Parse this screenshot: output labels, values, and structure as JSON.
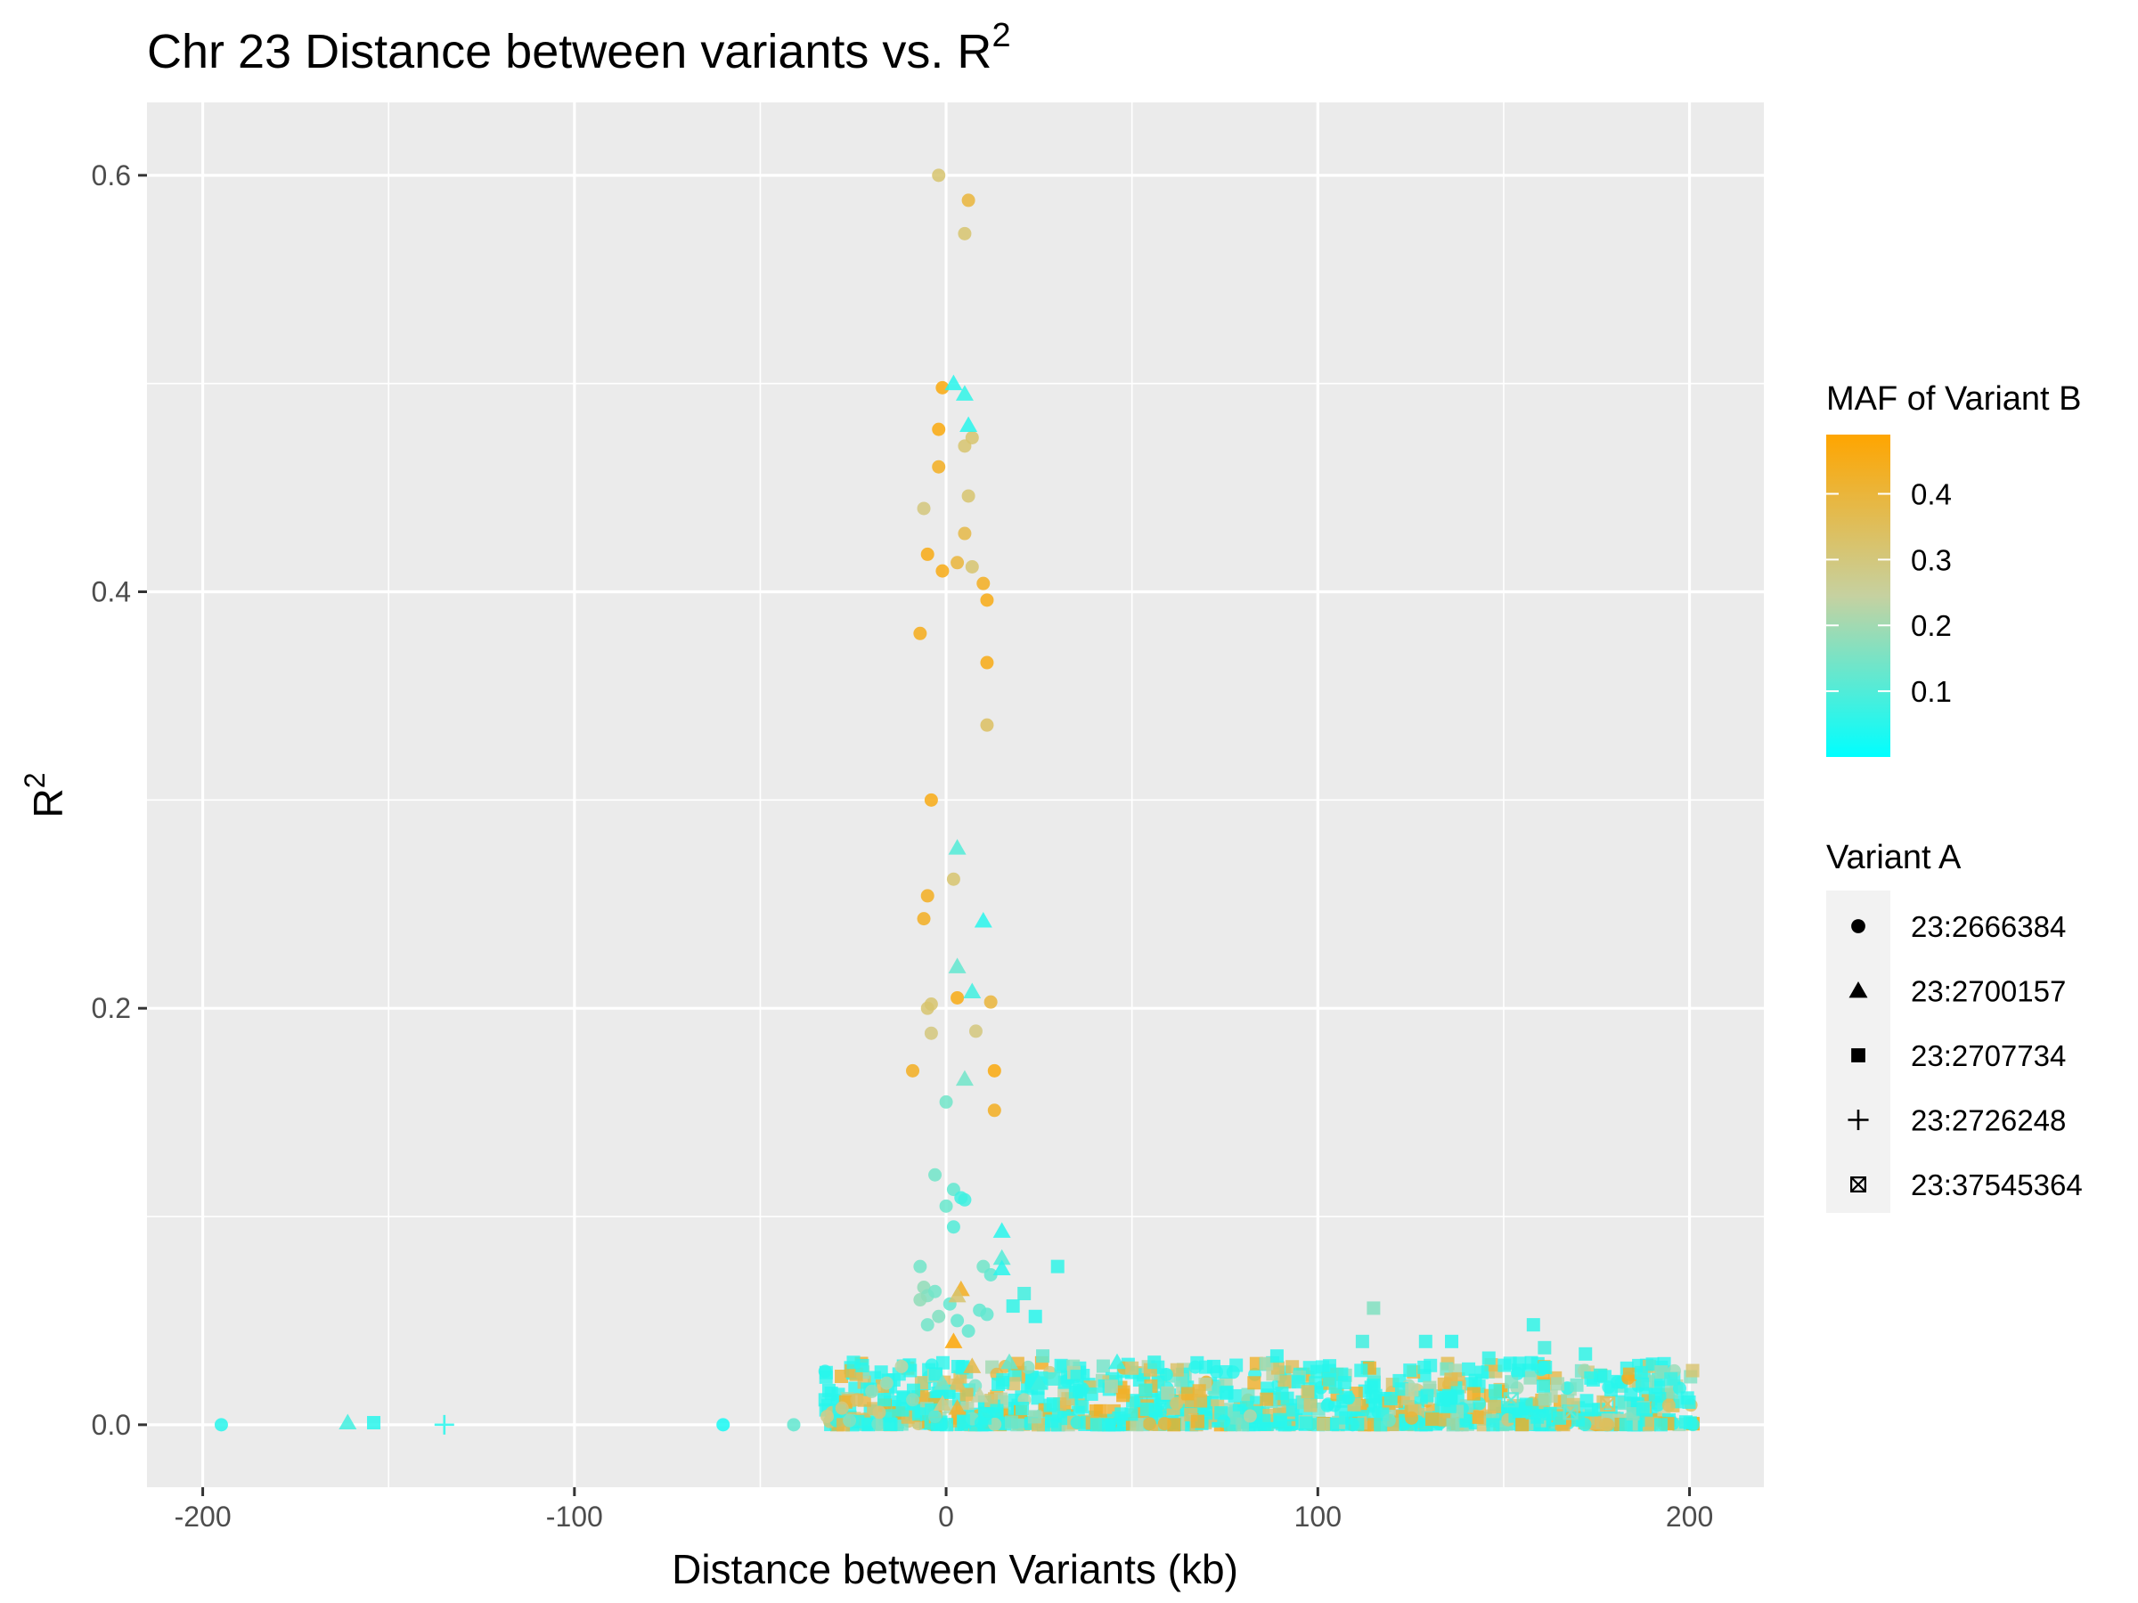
{
  "chart_data": {
    "type": "scatter",
    "title": "Chr 23 Distance between variants vs.  R",
    "title_sup": "2",
    "xlabel": "Distance between Variants (kb)",
    "ylabel": "R",
    "ylabel_sup": "2",
    "xlim": [
      -215,
      220
    ],
    "ylim": [
      -0.03,
      0.635
    ],
    "x_ticks": [
      -200,
      -100,
      0,
      100,
      200
    ],
    "x_tick_labels": [
      "-200",
      "-100",
      "0",
      "100",
      "200"
    ],
    "y_ticks": [
      0.0,
      0.2,
      0.4,
      0.6
    ],
    "y_tick_labels": [
      "0.0",
      "0.2",
      "0.4",
      "0.6"
    ],
    "grid": true,
    "legend_position": "right",
    "color_legend": {
      "title": "MAF of Variant B",
      "range": [
        0.0,
        0.49
      ],
      "ticks": [
        0.1,
        0.2,
        0.3,
        0.4
      ],
      "tick_labels": [
        "0.1",
        "0.2",
        "0.3",
        "0.4"
      ],
      "low_color": "#00ffff",
      "high_color": "#ffa500"
    },
    "shape_legend": {
      "title": "Variant A",
      "entries": [
        {
          "label": "23:2666384",
          "shape": "circle"
        },
        {
          "label": "23:2700157",
          "shape": "triangle"
        },
        {
          "label": "23:2707734",
          "shape": "square"
        },
        {
          "label": "23:2726248",
          "shape": "plus"
        },
        {
          "label": "23:37545364",
          "shape": "boxx"
        }
      ]
    },
    "series": [
      {
        "name": "23:2666384",
        "shape": "circle",
        "points": [
          [
            -195,
            0.0,
            0.05
          ],
          [
            -60,
            0.0,
            0.03
          ],
          [
            -41,
            0.0,
            0.12
          ],
          [
            -2,
            0.6,
            0.32
          ],
          [
            6,
            0.588,
            0.4
          ],
          [
            5,
            0.572,
            0.32
          ],
          [
            -1,
            0.498,
            0.47
          ],
          [
            -2,
            0.478,
            0.47
          ],
          [
            -2,
            0.46,
            0.44
          ],
          [
            7,
            0.474,
            0.32
          ],
          [
            5,
            0.47,
            0.32
          ],
          [
            6,
            0.446,
            0.32
          ],
          [
            -6,
            0.44,
            0.3
          ],
          [
            5,
            0.428,
            0.38
          ],
          [
            -5,
            0.418,
            0.46
          ],
          [
            3,
            0.414,
            0.4
          ],
          [
            -1,
            0.41,
            0.46
          ],
          [
            7,
            0.412,
            0.32
          ],
          [
            10,
            0.404,
            0.44
          ],
          [
            11,
            0.396,
            0.46
          ],
          [
            -7,
            0.38,
            0.45
          ],
          [
            11,
            0.366,
            0.46
          ],
          [
            11,
            0.336,
            0.34
          ],
          [
            -4,
            0.3,
            0.46
          ],
          [
            2,
            0.262,
            0.32
          ],
          [
            -5,
            0.254,
            0.44
          ],
          [
            -6,
            0.243,
            0.44
          ],
          [
            -5,
            0.2,
            0.32
          ],
          [
            -4,
            0.202,
            0.32
          ],
          [
            3,
            0.205,
            0.46
          ],
          [
            12,
            0.203,
            0.4
          ],
          [
            -4,
            0.188,
            0.3
          ],
          [
            8,
            0.189,
            0.3
          ],
          [
            -9,
            0.17,
            0.44
          ],
          [
            13,
            0.17,
            0.47
          ],
          [
            13,
            0.151,
            0.44
          ],
          [
            0,
            0.155,
            0.14
          ],
          [
            -3,
            0.12,
            0.14
          ],
          [
            2,
            0.113,
            0.12
          ],
          [
            4,
            0.109,
            0.08
          ],
          [
            5,
            0.108,
            0.08
          ],
          [
            0,
            0.105,
            0.13
          ],
          [
            2,
            0.095,
            0.1
          ],
          [
            -7,
            0.076,
            0.14
          ],
          [
            -6,
            0.066,
            0.18
          ],
          [
            -5,
            0.062,
            0.16
          ],
          [
            -3,
            0.064,
            0.14
          ],
          [
            -7,
            0.06,
            0.18
          ],
          [
            1,
            0.058,
            0.12
          ],
          [
            10,
            0.076,
            0.14
          ],
          [
            12,
            0.072,
            0.12
          ],
          [
            -2,
            0.052,
            0.16
          ],
          [
            -5,
            0.048,
            0.14
          ],
          [
            3,
            0.05,
            0.12
          ],
          [
            6,
            0.045,
            0.12
          ],
          [
            9,
            0.055,
            0.12
          ],
          [
            11,
            0.053,
            0.12
          ],
          [
            -12,
            0.028,
            0.24
          ],
          [
            -16,
            0.02,
            0.2
          ],
          [
            -20,
            0.016,
            0.18
          ],
          [
            -24,
            0.012,
            0.34
          ],
          [
            -28,
            0.008,
            0.3
          ],
          [
            -32,
            0.004,
            0.28
          ],
          [
            -26,
            0.002,
            0.16
          ],
          [
            -18,
            0.006,
            0.3
          ],
          [
            -9,
            0.012,
            0.16
          ],
          [
            -3,
            0.004,
            0.12
          ]
        ]
      },
      {
        "name": "23:2700157",
        "shape": "triangle",
        "points": [
          [
            -161,
            0.001,
            0.08
          ],
          [
            2,
            0.5,
            0.05
          ],
          [
            5,
            0.495,
            0.06
          ],
          [
            6,
            0.48,
            0.05
          ],
          [
            3,
            0.277,
            0.1
          ],
          [
            10,
            0.242,
            0.05
          ],
          [
            3,
            0.22,
            0.12
          ],
          [
            7,
            0.208,
            0.08
          ],
          [
            5,
            0.166,
            0.14
          ],
          [
            15,
            0.093,
            0.05
          ],
          [
            15,
            0.08,
            0.1
          ],
          [
            4,
            0.065,
            0.44
          ],
          [
            3,
            0.062,
            0.32
          ],
          [
            15,
            0.075,
            0.05
          ],
          [
            2,
            0.04,
            0.48
          ],
          [
            7,
            0.028,
            0.38
          ],
          [
            3,
            0.02,
            0.34
          ],
          [
            -1,
            0.02,
            0.14
          ],
          [
            17,
            0.03,
            0.12
          ],
          [
            46,
            0.03,
            0.06
          ],
          [
            25,
            0.02,
            0.08
          ],
          [
            9,
            0.014,
            0.24
          ],
          [
            -1,
            0.01,
            0.28
          ],
          [
            3,
            0.008,
            0.4
          ]
        ]
      },
      {
        "name": "23:2707734",
        "shape": "square",
        "points": [
          [
            -154,
            0.001,
            0.05
          ],
          [
            30,
            0.076,
            0.06
          ],
          [
            21,
            0.063,
            0.08
          ],
          [
            18,
            0.057,
            0.06
          ],
          [
            24,
            0.052,
            0.05
          ],
          [
            26,
            0.033,
            0.12
          ],
          [
            29,
            0.022,
            0.08
          ],
          [
            115,
            0.056,
            0.16
          ],
          [
            158,
            0.048,
            0.06
          ],
          [
            129,
            0.04,
            0.06
          ],
          [
            136,
            0.04,
            0.05
          ],
          [
            146,
            0.032,
            0.06
          ],
          [
            161,
            0.037,
            0.08
          ],
          [
            172,
            0.034,
            0.06
          ],
          [
            187,
            0.025,
            0.06
          ],
          [
            195,
            0.022,
            0.08
          ],
          [
            89,
            0.033,
            0.05
          ],
          [
            56,
            0.03,
            0.06
          ],
          [
            72,
            0.028,
            0.05
          ],
          [
            103,
            0.026,
            0.05
          ],
          [
            112,
            0.04,
            0.08
          ]
        ]
      },
      {
        "name": "23:2726248",
        "shape": "plus",
        "points": [
          [
            -135,
            0.0,
            0.05
          ]
        ]
      },
      {
        "name": "23:37545364",
        "shape": "boxx",
        "points": [
          [
            152,
            0.012,
            0.1
          ],
          [
            168,
            0.006,
            0.14
          ],
          [
            178,
            0.01,
            0.34
          ]
        ]
      }
    ],
    "dense_band": {
      "shape": "square",
      "x_range": [
        -33,
        201
      ],
      "y_range": [
        0.0,
        0.03
      ],
      "count": 1100,
      "dominant_maf": 0.05,
      "secondary_maf": [
        0.3,
        0.45
      ]
    }
  }
}
